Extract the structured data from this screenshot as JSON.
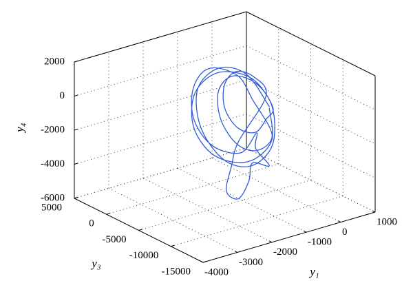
{
  "chart_data": {
    "type": "line3d",
    "xlabel": "y₁",
    "ylabel": "y₃",
    "zlabel": "y₄",
    "xlim": [
      -4000,
      1000
    ],
    "ylim": [
      5000,
      -15000
    ],
    "zlim": [
      -6000,
      2000
    ],
    "xticks": [
      -4000,
      -3000,
      -2000,
      -1000,
      0,
      1000
    ],
    "yticks": [
      5000,
      0,
      -5000,
      -10000,
      -15000
    ],
    "zticks": [
      -6000,
      -4000,
      -2000,
      0,
      2000
    ],
    "grid": true,
    "series": [
      {
        "color": "#2f5bd9",
        "x": [
          -200,
          -490,
          -1200,
          -1910,
          -2200,
          -1910,
          -1200,
          -490,
          -300,
          -500,
          -1000,
          -1500,
          -1700,
          -1500,
          -1000,
          -500,
          -500,
          -760,
          -1400,
          -2040,
          -2300,
          -2040,
          -1400,
          -760,
          -600,
          -300,
          -700,
          -800,
          -1100,
          -1450,
          -1300,
          -1100,
          -300,
          -480,
          -900,
          -1320,
          -1500,
          -1320,
          -900,
          -480,
          -200,
          -520,
          -1300,
          -2080,
          -2400,
          -2080,
          -1300,
          -520,
          -300
        ],
        "y": [
          -5000,
          -3000,
          -2500,
          -3000,
          -5000,
          -7000,
          -7500,
          -7000,
          -6000,
          -4500,
          -3500,
          -4000,
          -5500,
          -7000,
          -7500,
          -7000,
          -4000,
          -3000,
          -2000,
          -3000,
          -4500,
          -6000,
          -7000,
          -6000,
          -5000,
          -5500,
          -5000,
          -5000,
          -5000,
          -5000,
          -5000,
          -5000,
          -5000,
          -4000,
          -3500,
          -4000,
          -5000,
          -6000,
          -6500,
          -6000,
          -5500,
          -4000,
          -3000,
          -3500,
          -5000,
          -6500,
          -7500,
          -7000,
          -5500
        ],
        "z": [
          -1000,
          700,
          1400,
          700,
          -1000,
          -2700,
          -3400,
          -2700,
          -800,
          470,
          1000,
          470,
          -800,
          -2070,
          -2600,
          -2070,
          -600,
          810,
          1400,
          810,
          -600,
          -2010,
          -2600,
          -2010,
          -3200,
          -4300,
          -4000,
          -5000,
          -5850,
          -5200,
          -3800,
          -2500,
          -300,
          760,
          1200,
          760,
          -300,
          -1360,
          -1800,
          -1360,
          -900,
          660,
          1300,
          660,
          -900,
          -2460,
          -3100,
          -2460,
          -900
        ]
      }
    ]
  }
}
